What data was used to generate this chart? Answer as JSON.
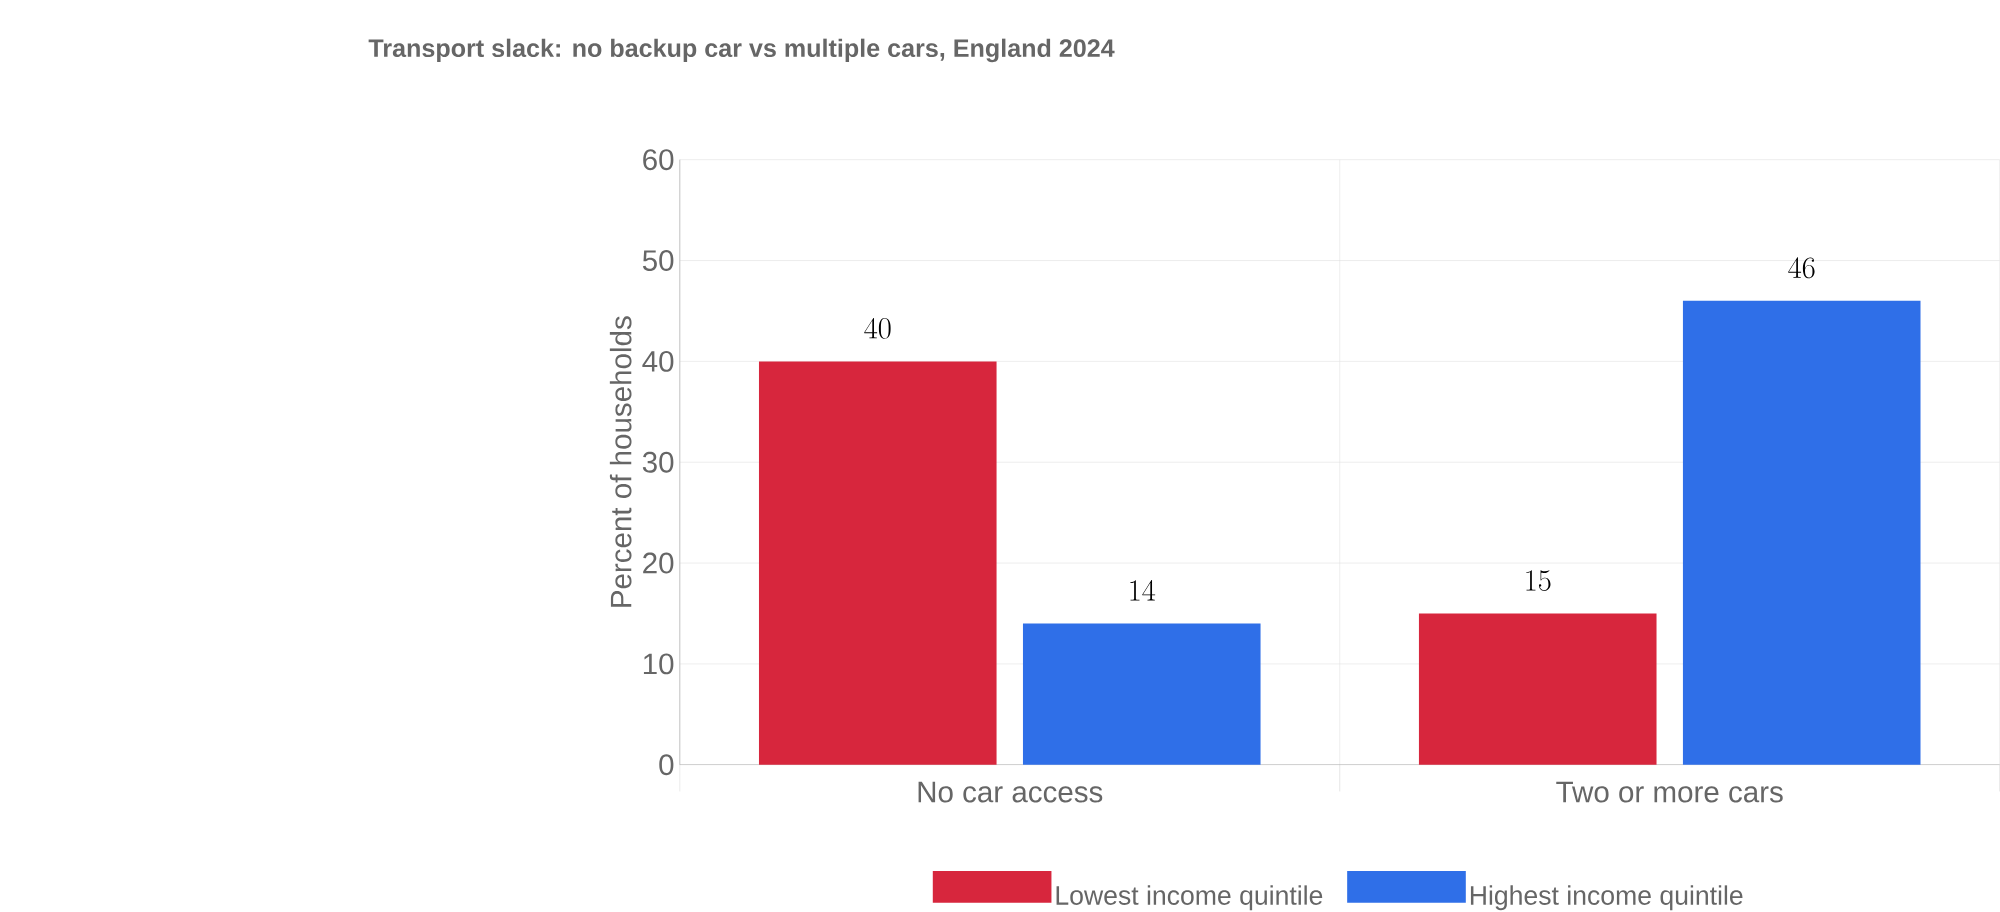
{
  "chart_data": {
    "type": "bar",
    "title": "Transport slack: no backup car vs multiple cars, England 2024",
    "categories": [
      "No car access",
      "Two or more cars"
    ],
    "series": [
      {
        "name": "Lowest income quintile",
        "color": "#d7263d",
        "values": [
          40,
          15
        ]
      },
      {
        "name": "Highest income quintile",
        "color": "#2f6fe8",
        "values": [
          14,
          46
        ]
      }
    ],
    "ylabel": "Percent of households",
    "ylim": [
      0,
      60
    ],
    "yticks": [
      0,
      10,
      20,
      30,
      40,
      50,
      60
    ],
    "grid": true,
    "legend": "bottom",
    "data_labels": true
  }
}
